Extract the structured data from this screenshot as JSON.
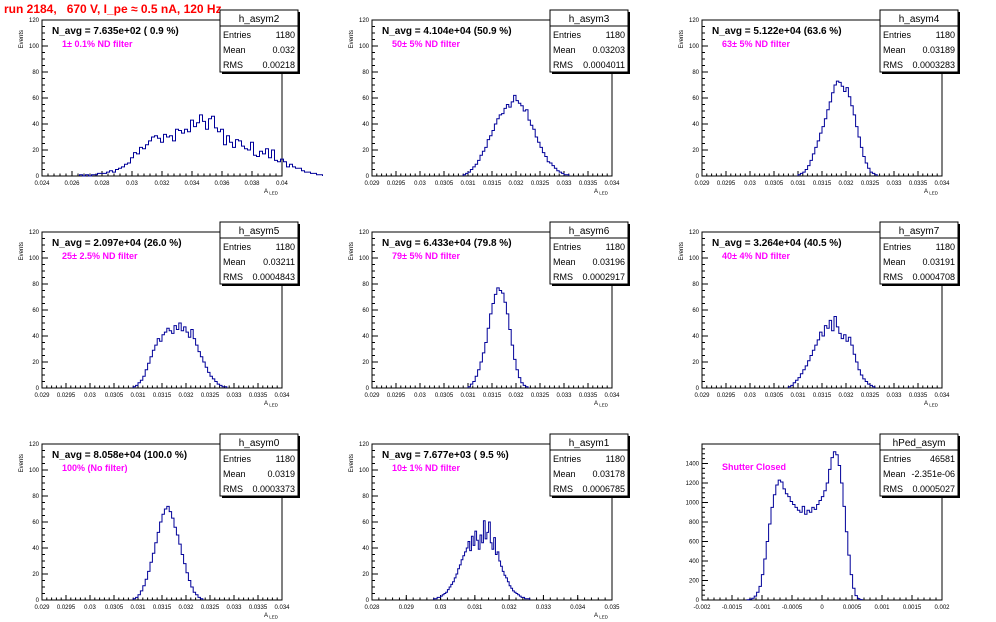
{
  "run_title": "run 2184,   670 V, I_pe ≈ 0.5 nA, 120 Hz",
  "colors": {
    "title": "#ff0000",
    "annotation": "#ff00ff",
    "histogram": "#000099",
    "axes": "#000000",
    "stats_box": "#000000"
  },
  "stats_labels": {
    "entries": "Entries",
    "mean": "Mean",
    "rms": "RMS"
  },
  "chart_data": [
    {
      "type": "histogram",
      "name": "h_asym2",
      "title": "N_avg = 7.635e+02 ( 0.9 %)",
      "annotation": "1± 0.1% ND filter",
      "stats": {
        "entries": "1180",
        "mean": "0.032",
        "rms": "0.00218"
      },
      "xlabel": "A_LED",
      "ylabel": "Events",
      "xlim": [
        0.024,
        0.04
      ],
      "ylim": [
        0,
        120
      ],
      "xticks": [
        "0.024",
        "0.026",
        "0.028",
        "0.03",
        "0.032",
        "0.034",
        "0.036",
        "0.038",
        "0.04"
      ],
      "yticks": [
        "0",
        "20",
        "40",
        "60",
        "80",
        "100",
        "120"
      ],
      "bins": {
        "start": 0.0265,
        "width": 0.0002,
        "counts": [
          1,
          0,
          1,
          0,
          1,
          1,
          2,
          2,
          2,
          3,
          4,
          3,
          5,
          6,
          7,
          9,
          10,
          14,
          18,
          17,
          22,
          21,
          24,
          27,
          30,
          31,
          29,
          26,
          32,
          30,
          31,
          27,
          36,
          35,
          33,
          36,
          34,
          43,
          38,
          41,
          47,
          42,
          36,
          44,
          46,
          37,
          34,
          36,
          24,
          31,
          26,
          22,
          28,
          27,
          23,
          21,
          20,
          26,
          16,
          15,
          19,
          17,
          21,
          14,
          20,
          12,
          11,
          13,
          11,
          7,
          9,
          7,
          6,
          6,
          4,
          3,
          3,
          2,
          2,
          1,
          1
        ]
      }
    },
    {
      "type": "histogram",
      "name": "h_asym3",
      "title": "N_avg = 4.104e+04 (50.9 %)",
      "annotation": "50± 5% ND filter",
      "stats": {
        "entries": "1180",
        "mean": "0.03203",
        "rms": "0.0004011"
      },
      "xlabel": "A_LED",
      "ylabel": "Events",
      "xlim": [
        0.029,
        0.034
      ],
      "ylim": [
        0,
        120
      ],
      "xticks": [
        "0.029",
        "0.0295",
        "0.03",
        "0.0305",
        "0.031",
        "0.0315",
        "0.032",
        "0.0325",
        "0.033",
        "0.0335",
        "0.034"
      ],
      "yticks": [
        "0",
        "20",
        "40",
        "60",
        "80",
        "100",
        "120"
      ],
      "bins": {
        "start": 0.0309,
        "width": 5e-05,
        "counts": [
          1,
          2,
          3,
          5,
          7,
          9,
          12,
          16,
          19,
          22,
          28,
          31,
          35,
          40,
          44,
          47,
          48,
          52,
          55,
          53,
          57,
          62,
          58,
          56,
          54,
          50,
          51,
          43,
          39,
          36,
          30,
          26,
          22,
          18,
          15,
          11,
          10,
          8,
          6,
          4,
          3,
          2,
          1,
          1
        ]
      }
    },
    {
      "type": "histogram",
      "name": "h_asym4",
      "title": "N_avg = 5.122e+04 (63.6 %)",
      "annotation": "63± 5% ND filter",
      "stats": {
        "entries": "1180",
        "mean": "0.03189",
        "rms": "0.0003283"
      },
      "xlabel": "A_LED",
      "ylabel": "Events",
      "xlim": [
        0.029,
        0.034
      ],
      "ylim": [
        0,
        120
      ],
      "xticks": [
        "0.029",
        "0.0295",
        "0.03",
        "0.0305",
        "0.031",
        "0.0315",
        "0.032",
        "0.0325",
        "0.033",
        "0.0335",
        "0.034"
      ],
      "yticks": [
        "0",
        "20",
        "40",
        "60",
        "80",
        "100",
        "120"
      ],
      "bins": {
        "start": 0.031,
        "width": 5e-05,
        "counts": [
          1,
          2,
          3,
          5,
          8,
          12,
          17,
          22,
          27,
          33,
          38,
          44,
          51,
          57,
          64,
          70,
          73,
          72,
          69,
          65,
          68,
          61,
          54,
          47,
          38,
          30,
          22,
          15,
          10,
          6,
          3,
          2,
          1
        ]
      }
    },
    {
      "type": "histogram",
      "name": "h_asym5",
      "title": "N_avg = 2.097e+04 (26.0 %)",
      "annotation": "25± 2.5% ND filter",
      "stats": {
        "entries": "1180",
        "mean": "0.03211",
        "rms": "0.0004843"
      },
      "xlabel": "A_LED",
      "ylabel": "Events",
      "xlim": [
        0.029,
        0.034
      ],
      "ylim": [
        0,
        120
      ],
      "xticks": [
        "0.029",
        "0.0295",
        "0.03",
        "0.0305",
        "0.031",
        "0.0315",
        "0.032",
        "0.0325",
        "0.033",
        "0.0335",
        "0.034"
      ],
      "yticks": [
        "0",
        "20",
        "40",
        "60",
        "80",
        "100",
        "120"
      ],
      "bins": {
        "start": 0.0309,
        "width": 5e-05,
        "counts": [
          1,
          2,
          4,
          6,
          9,
          14,
          19,
          24,
          29,
          33,
          38,
          36,
          41,
          43,
          46,
          44,
          42,
          48,
          45,
          50,
          44,
          47,
          43,
          39,
          45,
          38,
          33,
          28,
          24,
          20,
          16,
          12,
          9,
          7,
          5,
          3,
          2,
          1,
          1
        ]
      }
    },
    {
      "type": "histogram",
      "name": "h_asym6",
      "title": "N_avg = 6.433e+04 (79.8 %)",
      "annotation": "79± 5% ND filter",
      "stats": {
        "entries": "1180",
        "mean": "0.03196",
        "rms": "0.0002917"
      },
      "xlabel": "A_LED",
      "ylabel": "Events",
      "xlim": [
        0.029,
        0.034
      ],
      "ylim": [
        0,
        120
      ],
      "xticks": [
        "0.029",
        "0.0295",
        "0.03",
        "0.0305",
        "0.031",
        "0.0315",
        "0.032",
        "0.0325",
        "0.033",
        "0.0335",
        "0.034"
      ],
      "yticks": [
        "0",
        "20",
        "40",
        "60",
        "80",
        "100",
        "120"
      ],
      "bins": {
        "start": 0.031,
        "width": 5e-05,
        "counts": [
          1,
          3,
          5,
          9,
          14,
          20,
          27,
          35,
          46,
          57,
          65,
          72,
          77,
          75,
          73,
          66,
          57,
          45,
          33,
          22,
          14,
          8,
          4,
          2,
          1
        ]
      }
    },
    {
      "type": "histogram",
      "name": "h_asym7",
      "title": "N_avg = 3.264e+04 (40.5 %)",
      "annotation": "40± 4% ND filter",
      "stats": {
        "entries": "1180",
        "mean": "0.03191",
        "rms": "0.0004708"
      },
      "xlabel": "A_LED",
      "ylabel": "Events",
      "xlim": [
        0.029,
        0.034
      ],
      "ylim": [
        0,
        120
      ],
      "xticks": [
        "0.029",
        "0.0295",
        "0.03",
        "0.0305",
        "0.031",
        "0.0315",
        "0.032",
        "0.0325",
        "0.033",
        "0.0335",
        "0.034"
      ],
      "yticks": [
        "0",
        "20",
        "40",
        "60",
        "80",
        "100",
        "120"
      ],
      "bins": {
        "start": 0.0308,
        "width": 5e-05,
        "counts": [
          1,
          2,
          4,
          6,
          8,
          11,
          14,
          17,
          21,
          25,
          29,
          33,
          37,
          43,
          40,
          48,
          46,
          52,
          44,
          55,
          47,
          42,
          38,
          41,
          36,
          39,
          33,
          26,
          20,
          14,
          10,
          7,
          5,
          3,
          2,
          1
        ]
      }
    },
    {
      "type": "histogram",
      "name": "h_asym0",
      "title": "N_avg = 8.058e+04 (100.0 %)",
      "annotation": "100% (No filter)",
      "stats": {
        "entries": "1180",
        "mean": "0.0319",
        "rms": "0.0003373"
      },
      "xlabel": "A_LED",
      "ylabel": "Events",
      "xlim": [
        0.029,
        0.034
      ],
      "ylim": [
        0,
        120
      ],
      "xticks": [
        "0.029",
        "0.0295",
        "0.03",
        "0.0305",
        "0.031",
        "0.0315",
        "0.032",
        "0.0325",
        "0.033",
        "0.0335",
        "0.034"
      ],
      "yticks": [
        "0",
        "20",
        "40",
        "60",
        "80",
        "100",
        "120"
      ],
      "bins": {
        "start": 0.0309,
        "width": 5e-05,
        "counts": [
          1,
          2,
          4,
          7,
          11,
          16,
          22,
          29,
          36,
          44,
          52,
          60,
          66,
          70,
          72,
          68,
          63,
          56,
          50,
          43,
          35,
          28,
          21,
          15,
          10,
          6,
          4,
          2,
          1
        ]
      }
    },
    {
      "type": "histogram",
      "name": "h_asym1",
      "title": "N_avg = 7.677e+03 ( 9.5 %)",
      "annotation": "10± 1% ND filter",
      "stats": {
        "entries": "1180",
        "mean": "0.03178",
        "rms": "0.0006785"
      },
      "xlabel": "A_LED",
      "ylabel": "Events",
      "xlim": [
        0.028,
        0.035
      ],
      "ylim": [
        0,
        120
      ],
      "xticks": [
        "0.028",
        "0.029",
        "0.03",
        "0.031",
        "0.032",
        "0.033",
        "0.034",
        "0.035"
      ],
      "yticks": [
        "0",
        "20",
        "40",
        "60",
        "80",
        "100",
        "120"
      ],
      "bins": {
        "start": 0.0298,
        "width": 5e-05,
        "counts": [
          1,
          1,
          2,
          2,
          3,
          4,
          5,
          6,
          8,
          10,
          12,
          14,
          17,
          20,
          24,
          27,
          31,
          34,
          37,
          40,
          45,
          38,
          49,
          42,
          53,
          46,
          39,
          50,
          44,
          61,
          47,
          52,
          60,
          44,
          39,
          48,
          35,
          37,
          30,
          26,
          22,
          19,
          17,
          14,
          11,
          9,
          7,
          6,
          5,
          4,
          3,
          2,
          2,
          1,
          1,
          1
        ]
      }
    },
    {
      "type": "histogram",
      "name": "hPed_asym",
      "title": "",
      "annotation": "Shutter Closed",
      "stats": {
        "entries": "46581",
        "mean": "-2.351e-06",
        "rms": "0.0005027"
      },
      "xlabel": "",
      "ylabel": "",
      "xlim": [
        -0.002,
        0.002
      ],
      "ylim": [
        0,
        1600
      ],
      "xticks": [
        "-0.002",
        "-0.0015",
        "-0.001",
        "-0.0005",
        "0",
        "0.0005",
        "0.001",
        "0.0015",
        "0.002"
      ],
      "yticks": [
        "0",
        "200",
        "400",
        "600",
        "800",
        "1000",
        "1200",
        "1400"
      ],
      "bins": {
        "start": -0.00125,
        "width": 4e-05,
        "counts": [
          2,
          8,
          18,
          40,
          80,
          140,
          260,
          420,
          600,
          780,
          950,
          1080,
          1180,
          1230,
          1210,
          1140,
          1090,
          1060,
          1010,
          980,
          950,
          920,
          900,
          960,
          880,
          920,
          900,
          950,
          930,
          980,
          1020,
          1060,
          1120,
          1200,
          1340,
          1460,
          1520,
          1490,
          1380,
          1200,
          960,
          700,
          460,
          260,
          120,
          45,
          14,
          4
        ]
      }
    }
  ]
}
